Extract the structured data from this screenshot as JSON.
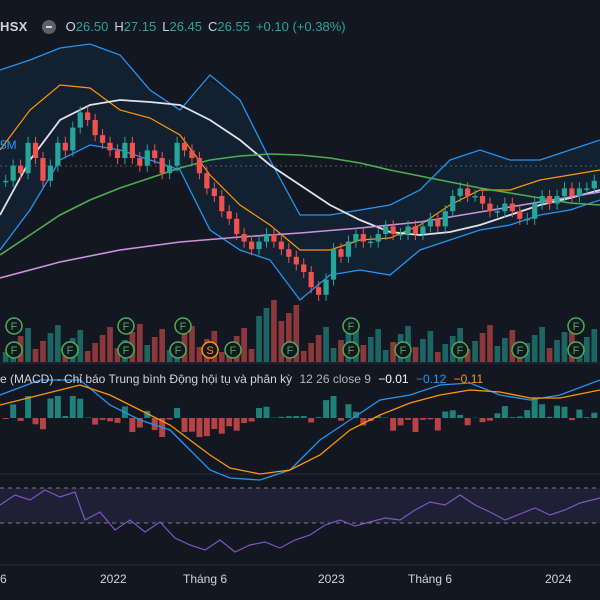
{
  "header": {
    "symbol": "HSX",
    "o_label": "O",
    "o_value": "26.50",
    "h_label": "H",
    "h_value": "27.15",
    "l_label": "L",
    "l_value": "26.45",
    "c_label": "C",
    "c_value": "26.55",
    "change": "+0.10 (+0.38%)",
    "collapse_icon": "minus-circle-icon"
  },
  "volume_ma_label": "5M",
  "macd": {
    "title": "e (MACD) - Chỉ báo Trung bình Động hội tụ và phân kỳ",
    "params": "12 26 close 9",
    "val1": "−0.01",
    "val2": "−0.12",
    "val3": "−0.11"
  },
  "colors": {
    "background": "#131722",
    "up": "#26a69a",
    "down": "#ef5350",
    "bollinger": "#2196f3",
    "ema_fast": "#ff9800",
    "ma_white": "#e0e3eb",
    "ma_green": "#4caf50",
    "ma_violet": "#ce93d8",
    "rsi": "#7e57c2"
  },
  "chart_data": {
    "type": "candlestick",
    "x_ticks": [
      "6",
      "2022",
      "Tháng 6",
      "2023",
      "Tháng 6",
      "2024"
    ],
    "candles_approx": [
      29,
      31,
      30,
      34,
      32,
      29,
      31,
      34,
      33,
      36,
      38,
      37,
      35,
      34,
      33,
      32,
      34,
      32,
      31,
      33,
      32,
      30,
      31,
      34,
      33,
      32,
      30,
      28,
      27,
      25,
      24,
      22,
      21,
      20,
      21,
      22,
      21,
      20,
      19,
      18,
      17,
      15,
      14,
      16,
      20,
      19,
      21,
      22,
      21,
      21,
      22,
      23,
      22,
      22,
      23,
      22,
      23,
      24,
      23,
      25,
      27,
      28,
      27,
      27,
      26,
      25,
      25,
      26,
      25,
      24,
      24,
      26,
      27,
      26,
      27,
      28,
      27,
      28,
      28,
      29
    ],
    "markers": [
      {
        "label": "F",
        "row": "upper"
      },
      {
        "label": "F",
        "row": "lower"
      },
      {
        "label": "F",
        "row": "lower"
      },
      {
        "label": "F",
        "row": "upper"
      },
      {
        "label": "F",
        "row": "lower"
      },
      {
        "label": "F",
        "row": "lower"
      },
      {
        "label": "S",
        "row": "lower"
      },
      {
        "label": "F",
        "row": "lower"
      },
      {
        "label": "F",
        "row": "lower"
      },
      {
        "label": "F",
        "row": "upper"
      },
      {
        "label": "F",
        "row": "lower"
      },
      {
        "label": "F",
        "row": "lower"
      },
      {
        "label": "F",
        "row": "lower"
      },
      {
        "label": "F",
        "row": "lower"
      },
      {
        "label": "F",
        "row": "upper"
      },
      {
        "label": "F",
        "row": "lower"
      },
      {
        "label": "F",
        "row": "upper"
      },
      {
        "label": "F",
        "row": "lower"
      }
    ]
  }
}
